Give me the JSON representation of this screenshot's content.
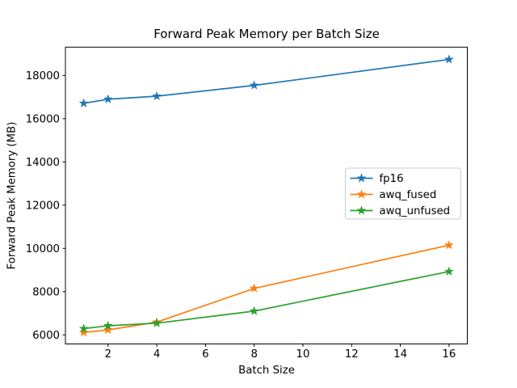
{
  "chart_data": {
    "type": "line",
    "title": "Forward Peak Memory per Batch Size",
    "xlabel": "Batch Size",
    "ylabel": "Forward Peak Memory (MB)",
    "x": [
      1,
      2,
      4,
      8,
      16
    ],
    "series": [
      {
        "name": "fp16",
        "color": "#1f77b4",
        "marker": "star",
        "values": [
          16710,
          16900,
          17040,
          17540,
          18740
        ]
      },
      {
        "name": "awq_fused",
        "color": "#ff7f0e",
        "marker": "star",
        "values": [
          6110,
          6230,
          6590,
          8150,
          10150
        ]
      },
      {
        "name": "awq_unfused",
        "color": "#2ca02c",
        "marker": "star",
        "values": [
          6290,
          6420,
          6540,
          7100,
          8930
        ]
      }
    ],
    "xticks": [
      2,
      4,
      6,
      8,
      10,
      12,
      14,
      16
    ],
    "yticks": [
      6000,
      8000,
      10000,
      12000,
      14000,
      16000,
      18000
    ],
    "xlim": [
      0.25,
      16.75
    ],
    "ylim": [
      5580,
      19310
    ],
    "grid": false,
    "legend": {
      "position": "center right",
      "entries": [
        "fp16",
        "awq_fused",
        "awq_unfused"
      ]
    },
    "axis_color": "#000000",
    "tick_label_color": "#000000",
    "background": "#ffffff",
    "legend_border_color": "#cccccc"
  }
}
